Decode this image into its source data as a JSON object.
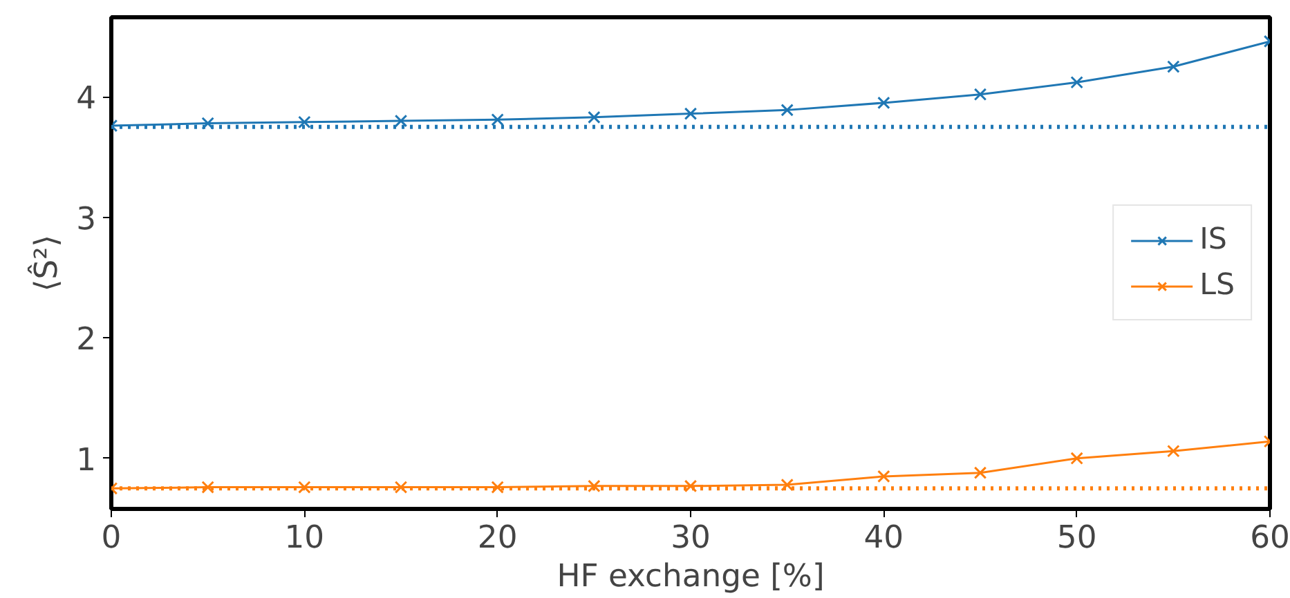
{
  "chart_data": {
    "type": "line",
    "xlabel": "HF exchange [%]",
    "ylabel": "⟨Ŝ²⟩",
    "x": [
      0,
      5,
      10,
      15,
      20,
      25,
      30,
      35,
      40,
      45,
      50,
      55,
      60
    ],
    "series": [
      {
        "name": "IS",
        "color": "#1f77b4",
        "values": [
          3.76,
          3.78,
          3.79,
          3.8,
          3.81,
          3.83,
          3.86,
          3.89,
          3.95,
          4.02,
          4.12,
          4.25,
          4.46
        ]
      },
      {
        "name": "LS",
        "color": "#ff7f0e",
        "values": [
          0.75,
          0.76,
          0.76,
          0.76,
          0.76,
          0.77,
          0.77,
          0.78,
          0.85,
          0.88,
          1.0,
          1.06,
          1.14
        ]
      }
    ],
    "ref_lines": [
      {
        "axis": "y",
        "value": 3.75,
        "color": "#1f77b4",
        "line_style": "dotted"
      },
      {
        "axis": "y",
        "value": 0.75,
        "color": "#ff7f0e",
        "line_style": "dotted"
      }
    ],
    "xlim": [
      0,
      60
    ],
    "ylim": [
      0.58,
      4.66
    ],
    "xticks": [
      0,
      10,
      20,
      30,
      40,
      50,
      60
    ],
    "yticks": [
      1,
      2,
      3,
      4
    ],
    "marker": "cross",
    "line_style": "solid",
    "grid": false,
    "legend": "right"
  }
}
